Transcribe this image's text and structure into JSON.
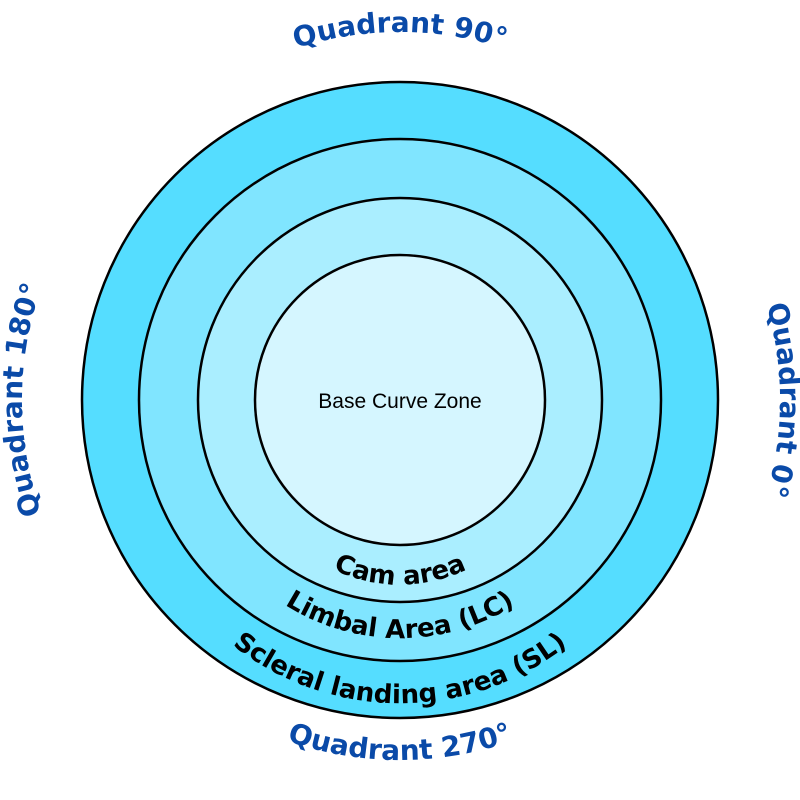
{
  "colors": {
    "scleral_fill": "#55ddff",
    "limbal_fill": "#80e5ff",
    "cam_fill": "#aaeeff",
    "base_fill": "#d5f6ff",
    "stroke": "#000000",
    "quadrant_text": "#0a4aa8"
  },
  "zones": {
    "base_curve": "Base Curve Zone",
    "cam": "Cam area",
    "limbal": "Limbal Area (LC)",
    "scleral": "Scleral landing area (SL)"
  },
  "quadrants": {
    "top": "Quadrant 90°",
    "right": "Quadrant 0°",
    "bottom": "Quadrant 270°",
    "left": "Quadrant 180°"
  }
}
